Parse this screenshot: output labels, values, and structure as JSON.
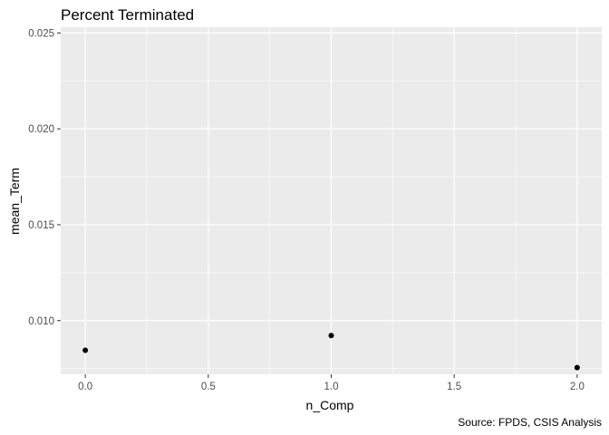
{
  "chart_data": {
    "type": "scatter",
    "title": "Percent Terminated",
    "xlabel": "n_Comp",
    "ylabel": "mean_Term",
    "caption": "Source: FPDS, CSIS Analysis",
    "xlim": [
      -0.1,
      2.1
    ],
    "ylim": [
      0.0072,
      0.0253
    ],
    "x_ticks": [
      0.0,
      0.5,
      1.0,
      1.5,
      2.0
    ],
    "x_tick_labels": [
      "0.0",
      "0.5",
      "1.0",
      "1.5",
      "2.0"
    ],
    "y_ticks": [
      0.01,
      0.015,
      0.02,
      0.025
    ],
    "y_tick_labels": [
      "0.010",
      "0.015",
      "0.020",
      "0.025"
    ],
    "grid": true,
    "series": [
      {
        "x": [
          0.0,
          1.0,
          2.0
        ],
        "y": [
          0.00845,
          0.00922,
          0.00755
        ]
      }
    ],
    "colors": {
      "panel_background": "#ebebeb",
      "grid_major": "#ffffff",
      "point": "#000000",
      "tick": "#333333"
    }
  }
}
